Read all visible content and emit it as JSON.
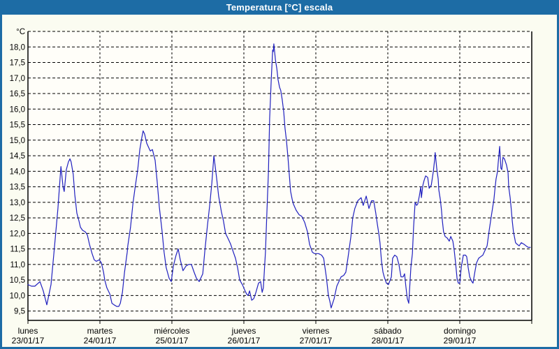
{
  "window": {
    "title": "Temperatura [°C] escala"
  },
  "chart_data": {
    "type": "line",
    "title": "Temperatura [°C] escala",
    "series_name": "Temperatura",
    "unit_label": "°C",
    "ylabel": "Temperatura [°C]",
    "xlabel": "",
    "ylim": [
      9.2,
      18.5
    ],
    "grid": "dashed",
    "legend_position": "none",
    "x_axis": {
      "days": [
        {
          "weekday": "lunes",
          "date": "23/01/17"
        },
        {
          "weekday": "martes",
          "date": "24/01/17"
        },
        {
          "weekday": "miércoles",
          "date": "25/01/17"
        },
        {
          "weekday": "jueves",
          "date": "26/01/17"
        },
        {
          "weekday": "viernes",
          "date": "27/01/17"
        },
        {
          "weekday": "sábado",
          "date": "28/01/17"
        },
        {
          "weekday": "domingo",
          "date": "29/01/17"
        }
      ],
      "hours_total": 168
    },
    "y_axis": {
      "ticks": [
        {
          "value": 18.0,
          "label": "18,0"
        },
        {
          "value": 17.5,
          "label": "17,5"
        },
        {
          "value": 17.0,
          "label": "17,0"
        },
        {
          "value": 16.5,
          "label": "16,5"
        },
        {
          "value": 16.0,
          "label": "16,0"
        },
        {
          "value": 15.5,
          "label": "15,5"
        },
        {
          "value": 15.0,
          "label": "15,0"
        },
        {
          "value": 14.5,
          "label": "14,5"
        },
        {
          "value": 14.0,
          "label": "14,0"
        },
        {
          "value": 13.5,
          "label": "13,5"
        },
        {
          "value": 13.0,
          "label": "13,0"
        },
        {
          "value": 12.5,
          "label": "12,5"
        },
        {
          "value": 12.0,
          "label": "12,0"
        },
        {
          "value": 11.5,
          "label": "11,5"
        },
        {
          "value": 11.0,
          "label": "11,0"
        },
        {
          "value": 10.5,
          "label": "10,5"
        },
        {
          "value": 10.0,
          "label": "10,0"
        },
        {
          "value": 9.5,
          "label": "9,5"
        }
      ]
    },
    "points": [
      [
        0.0,
        10.35
      ],
      [
        1.2,
        10.3
      ],
      [
        2.3,
        10.3
      ],
      [
        4.0,
        10.45
      ],
      [
        5.1,
        10.15
      ],
      [
        6.3,
        9.7
      ],
      [
        7.7,
        10.35
      ],
      [
        8.6,
        11.3
      ],
      [
        9.3,
        12.05
      ],
      [
        10.0,
        12.8
      ],
      [
        10.5,
        13.5
      ],
      [
        11.0,
        14.15
      ],
      [
        11.7,
        13.5
      ],
      [
        12.1,
        13.35
      ],
      [
        12.8,
        14.05
      ],
      [
        13.5,
        14.3
      ],
      [
        14.0,
        14.4
      ],
      [
        14.4,
        14.3
      ],
      [
        15.1,
        13.9
      ],
      [
        15.6,
        13.25
      ],
      [
        16.3,
        12.65
      ],
      [
        17.0,
        12.4
      ],
      [
        17.5,
        12.2
      ],
      [
        18.2,
        12.1
      ],
      [
        19.1,
        12.05
      ],
      [
        19.8,
        11.95
      ],
      [
        20.5,
        11.65
      ],
      [
        21.4,
        11.35
      ],
      [
        22.1,
        11.15
      ],
      [
        22.8,
        11.1
      ],
      [
        23.8,
        11.15
      ],
      [
        24.5,
        11.05
      ],
      [
        25.2,
        10.75
      ],
      [
        25.6,
        10.5
      ],
      [
        26.3,
        10.25
      ],
      [
        27.3,
        10.05
      ],
      [
        28.0,
        9.75
      ],
      [
        28.7,
        9.7
      ],
      [
        29.6,
        9.65
      ],
      [
        30.3,
        9.65
      ],
      [
        30.8,
        9.75
      ],
      [
        31.5,
        10.1
      ],
      [
        32.2,
        10.75
      ],
      [
        33.1,
        11.4
      ],
      [
        33.3,
        11.6
      ],
      [
        34.2,
        12.2
      ],
      [
        35.0,
        12.95
      ],
      [
        35.7,
        13.45
      ],
      [
        36.6,
        14.05
      ],
      [
        37.3,
        14.7
      ],
      [
        38.0,
        15.1
      ],
      [
        38.4,
        15.3
      ],
      [
        38.9,
        15.2
      ],
      [
        39.6,
        14.9
      ],
      [
        40.3,
        14.75
      ],
      [
        40.8,
        14.65
      ],
      [
        41.5,
        14.7
      ],
      [
        42.4,
        14.35
      ],
      [
        43.1,
        13.65
      ],
      [
        43.8,
        12.85
      ],
      [
        44.7,
        12.1
      ],
      [
        45.4,
        11.4
      ],
      [
        46.1,
        10.9
      ],
      [
        47.1,
        10.55
      ],
      [
        47.8,
        10.45
      ],
      [
        48.5,
        10.95
      ],
      [
        49.4,
        11.3
      ],
      [
        50.1,
        11.5
      ],
      [
        50.8,
        11.15
      ],
      [
        51.7,
        10.8
      ],
      [
        52.7,
        10.95
      ],
      [
        53.6,
        11.0
      ],
      [
        54.5,
        11.0
      ],
      [
        55.4,
        10.75
      ],
      [
        56.2,
        10.55
      ],
      [
        57.1,
        10.45
      ],
      [
        58.3,
        10.7
      ],
      [
        59.0,
        11.45
      ],
      [
        59.9,
        12.3
      ],
      [
        60.6,
        12.9
      ],
      [
        61.3,
        13.6
      ],
      [
        62.0,
        14.5
      ],
      [
        62.9,
        13.8
      ],
      [
        63.6,
        13.2
      ],
      [
        64.5,
        12.7
      ],
      [
        65.2,
        12.4
      ],
      [
        65.9,
        12.0
      ],
      [
        66.9,
        11.8
      ],
      [
        67.6,
        11.65
      ],
      [
        68.3,
        11.45
      ],
      [
        69.2,
        11.2
      ],
      [
        69.9,
        10.9
      ],
      [
        70.6,
        10.5
      ],
      [
        71.5,
        10.35
      ],
      [
        72.4,
        10.15
      ],
      [
        72.9,
        10.05
      ],
      [
        73.4,
        10.0
      ],
      [
        73.9,
        10.15
      ],
      [
        74.6,
        9.85
      ],
      [
        75.3,
        9.9
      ],
      [
        76.0,
        10.1
      ],
      [
        76.9,
        10.4
      ],
      [
        77.6,
        10.45
      ],
      [
        78.1,
        10.1
      ],
      [
        78.5,
        10.25
      ],
      [
        79.2,
        11.4
      ],
      [
        79.7,
        12.7
      ],
      [
        80.2,
        14.0
      ],
      [
        80.6,
        15.7
      ],
      [
        81.1,
        16.9
      ],
      [
        81.6,
        17.9
      ],
      [
        81.8,
        17.85
      ],
      [
        82.0,
        18.1
      ],
      [
        82.5,
        17.6
      ],
      [
        83.0,
        17.3
      ],
      [
        83.4,
        16.95
      ],
      [
        83.9,
        16.7
      ],
      [
        84.3,
        16.6
      ],
      [
        84.8,
        16.3
      ],
      [
        85.3,
        15.9
      ],
      [
        85.7,
        15.4
      ],
      [
        86.2,
        15.0
      ],
      [
        86.7,
        14.45
      ],
      [
        87.1,
        13.95
      ],
      [
        87.6,
        13.35
      ],
      [
        88.1,
        13.1
      ],
      [
        88.5,
        12.95
      ],
      [
        89.4,
        12.75
      ],
      [
        90.4,
        12.6
      ],
      [
        91.3,
        12.55
      ],
      [
        92.3,
        12.35
      ],
      [
        93.2,
        12.05
      ],
      [
        93.9,
        11.65
      ],
      [
        94.8,
        11.4
      ],
      [
        95.5,
        11.35
      ],
      [
        96.2,
        11.35
      ],
      [
        96.9,
        11.35
      ],
      [
        97.9,
        11.3
      ],
      [
        98.6,
        11.2
      ],
      [
        99.5,
        10.6
      ],
      [
        100.2,
        10.0
      ],
      [
        100.7,
        9.8
      ],
      [
        101.1,
        9.6
      ],
      [
        102.1,
        9.9
      ],
      [
        103.0,
        10.3
      ],
      [
        103.7,
        10.45
      ],
      [
        104.4,
        10.6
      ],
      [
        105.3,
        10.65
      ],
      [
        106.0,
        10.75
      ],
      [
        106.7,
        11.2
      ],
      [
        107.7,
        11.9
      ],
      [
        108.3,
        12.5
      ],
      [
        109.0,
        12.8
      ],
      [
        110.0,
        13.05
      ],
      [
        111.1,
        13.15
      ],
      [
        111.8,
        12.9
      ],
      [
        112.8,
        13.2
      ],
      [
        113.7,
        12.8
      ],
      [
        114.6,
        13.05
      ],
      [
        115.3,
        13.05
      ],
      [
        116.0,
        12.65
      ],
      [
        116.5,
        12.3
      ],
      [
        117.0,
        12.0
      ],
      [
        117.4,
        11.7
      ],
      [
        117.9,
        11.1
      ],
      [
        118.4,
        10.75
      ],
      [
        118.8,
        10.6
      ],
      [
        119.5,
        10.4
      ],
      [
        120.2,
        10.35
      ],
      [
        121.2,
        10.6
      ],
      [
        121.6,
        11.2
      ],
      [
        122.3,
        11.3
      ],
      [
        123.0,
        11.25
      ],
      [
        123.7,
        11.0
      ],
      [
        124.4,
        10.6
      ],
      [
        125.1,
        10.6
      ],
      [
        125.6,
        10.7
      ],
      [
        126.0,
        10.3
      ],
      [
        126.5,
        9.9
      ],
      [
        127.0,
        9.75
      ],
      [
        127.7,
        10.9
      ],
      [
        128.2,
        11.35
      ],
      [
        128.6,
        12.2
      ],
      [
        129.1,
        13.0
      ],
      [
        129.6,
        12.9
      ],
      [
        130.0,
        12.95
      ],
      [
        130.5,
        13.2
      ],
      [
        131.0,
        13.5
      ],
      [
        131.2,
        13.15
      ],
      [
        131.7,
        13.55
      ],
      [
        132.1,
        13.7
      ],
      [
        132.6,
        13.85
      ],
      [
        133.3,
        13.8
      ],
      [
        133.8,
        13.45
      ],
      [
        134.5,
        13.55
      ],
      [
        135.2,
        14.0
      ],
      [
        135.6,
        14.35
      ],
      [
        135.8,
        14.6
      ],
      [
        136.3,
        14.1
      ],
      [
        136.8,
        13.75
      ],
      [
        137.0,
        13.4
      ],
      [
        137.5,
        13.1
      ],
      [
        137.9,
        12.75
      ],
      [
        138.2,
        12.4
      ],
      [
        138.6,
        12.05
      ],
      [
        139.1,
        11.9
      ],
      [
        139.8,
        11.85
      ],
      [
        140.5,
        11.75
      ],
      [
        141.0,
        11.9
      ],
      [
        141.7,
        11.75
      ],
      [
        142.1,
        11.5
      ],
      [
        142.6,
        11.05
      ],
      [
        143.1,
        10.55
      ],
      [
        143.5,
        10.4
      ],
      [
        144.0,
        10.4
      ],
      [
        144.5,
        10.9
      ],
      [
        145.2,
        11.3
      ],
      [
        145.9,
        11.3
      ],
      [
        146.3,
        11.25
      ],
      [
        146.8,
        10.9
      ],
      [
        147.3,
        10.6
      ],
      [
        148.0,
        10.45
      ],
      [
        148.4,
        10.4
      ],
      [
        149.1,
        10.8
      ],
      [
        149.6,
        11.05
      ],
      [
        150.3,
        11.2
      ],
      [
        151.0,
        11.25
      ],
      [
        151.7,
        11.3
      ],
      [
        152.4,
        11.45
      ],
      [
        153.1,
        11.6
      ],
      [
        153.8,
        12.1
      ],
      [
        154.5,
        12.55
      ],
      [
        155.4,
        13.1
      ],
      [
        155.7,
        13.4
      ],
      [
        156.1,
        13.75
      ],
      [
        156.6,
        14.0
      ],
      [
        156.8,
        14.25
      ],
      [
        157.3,
        14.8
      ],
      [
        157.7,
        14.1
      ],
      [
        158.0,
        14.05
      ],
      [
        158.4,
        14.45
      ],
      [
        158.9,
        14.4
      ],
      [
        159.6,
        14.2
      ],
      [
        160.1,
        13.95
      ],
      [
        160.3,
        13.5
      ],
      [
        160.8,
        13.15
      ],
      [
        161.2,
        12.75
      ],
      [
        161.5,
        12.4
      ],
      [
        161.9,
        12.05
      ],
      [
        162.4,
        11.8
      ],
      [
        162.6,
        11.7
      ],
      [
        163.1,
        11.65
      ],
      [
        163.8,
        11.6
      ],
      [
        164.5,
        11.7
      ],
      [
        165.4,
        11.65
      ],
      [
        166.1,
        11.6
      ],
      [
        166.8,
        11.55
      ],
      [
        167.5,
        11.55
      ]
    ],
    "colors": {
      "line": "#2020bf",
      "titlebar": "#1d6ca5",
      "title_text": "#ffffff",
      "grid": "#000000",
      "axis": "#000000",
      "axis_text": "#000000",
      "background": "#fbfcf1",
      "plot_background": "#fffef9"
    }
  }
}
